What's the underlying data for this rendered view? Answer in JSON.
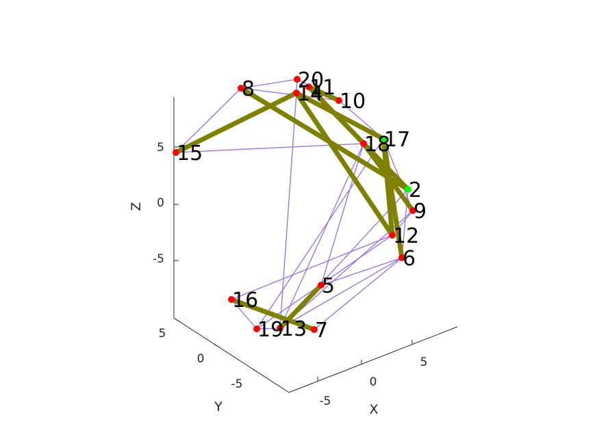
{
  "chart_data": {
    "type": "scatter",
    "subtype": "3d-graph",
    "xlabel": "X",
    "ylabel": "Y",
    "zlabel": "Z",
    "x_ticks": [
      "-5",
      "0",
      "5"
    ],
    "y_ticks": [
      "-5",
      "0",
      "5"
    ],
    "z_ticks": [
      "-5",
      "0",
      "5"
    ],
    "grid": false,
    "colors": {
      "axis": "#262626",
      "thin_edge": "#9370DB",
      "thick_edge": "#808000",
      "node": "#FF0000",
      "highlight_node": "#00FF00"
    },
    "nodes": [
      {
        "id": "2",
        "highlight": true
      },
      {
        "id": "5",
        "highlight": false
      },
      {
        "id": "6",
        "highlight": false
      },
      {
        "id": "7",
        "highlight": false
      },
      {
        "id": "8",
        "highlight": false
      },
      {
        "id": "9",
        "highlight": false
      },
      {
        "id": "10",
        "highlight": false
      },
      {
        "id": "11",
        "highlight": false
      },
      {
        "id": "12",
        "highlight": false
      },
      {
        "id": "13",
        "highlight": false
      },
      {
        "id": "14",
        "highlight": false
      },
      {
        "id": "15",
        "highlight": false
      },
      {
        "id": "16",
        "highlight": false
      },
      {
        "id": "17",
        "highlight": true
      },
      {
        "id": "18",
        "highlight": false
      },
      {
        "id": "19",
        "highlight": false
      },
      {
        "id": "20",
        "highlight": false
      }
    ],
    "thick_edges": [
      [
        "8",
        "2"
      ],
      [
        "15",
        "14"
      ],
      [
        "14",
        "17"
      ],
      [
        "14",
        "12"
      ],
      [
        "11",
        "2"
      ],
      [
        "18",
        "9"
      ],
      [
        "17",
        "6"
      ],
      [
        "17",
        "12"
      ],
      [
        "16",
        "7"
      ],
      [
        "13",
        "5"
      ],
      [
        "11",
        "10"
      ]
    ],
    "thin_edges": [
      [
        "20",
        "8"
      ],
      [
        "20",
        "14"
      ],
      [
        "8",
        "15"
      ],
      [
        "8",
        "10"
      ],
      [
        "20",
        "10"
      ],
      [
        "15",
        "18"
      ],
      [
        "14",
        "13"
      ],
      [
        "10",
        "17"
      ],
      [
        "18",
        "2"
      ],
      [
        "17",
        "9"
      ],
      [
        "2",
        "6"
      ],
      [
        "9",
        "12"
      ],
      [
        "18",
        "5"
      ],
      [
        "12",
        "16"
      ],
      [
        "2",
        "13"
      ],
      [
        "9",
        "13"
      ],
      [
        "6",
        "13"
      ],
      [
        "16",
        "19"
      ],
      [
        "19",
        "13"
      ],
      [
        "12",
        "19"
      ],
      [
        "5",
        "6"
      ],
      [
        "18",
        "13"
      ],
      [
        "17",
        "19"
      ],
      [
        "6",
        "7"
      ]
    ]
  }
}
